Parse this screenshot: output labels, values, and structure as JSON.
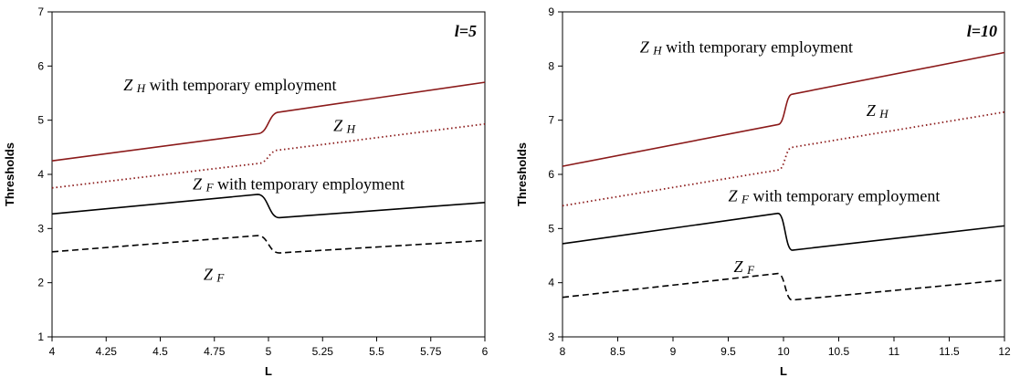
{
  "chart_data": [
    {
      "type": "line",
      "title": "l=5",
      "xlabel": "L",
      "ylabel": "Thresholds",
      "xlim": [
        4,
        6
      ],
      "ylim": [
        1,
        7
      ],
      "x_ticks": [
        "4",
        "4.25",
        "4.5",
        "4.75",
        "5",
        "5.25",
        "5.5",
        "5.75",
        "6"
      ],
      "y_ticks": [
        "1",
        "2",
        "3",
        "4",
        "5",
        "6",
        "7"
      ],
      "grid": false,
      "legend": "none",
      "jump_at": 5,
      "series": [
        {
          "name": "ZH with temporary employment",
          "style": "solid",
          "color": "#8b1a1a",
          "x": [
            4,
            4.95,
            5.05,
            6
          ],
          "y": [
            4.25,
            4.75,
            5.15,
            5.7
          ]
        },
        {
          "name": "ZH",
          "style": "dotted",
          "color": "#8b1a1a",
          "x": [
            4,
            4.95,
            5.05,
            6
          ],
          "y": [
            3.75,
            4.2,
            4.45,
            4.93
          ]
        },
        {
          "name": "ZF with temporary employment",
          "style": "solid",
          "color": "#000000",
          "x": [
            4,
            4.95,
            5.05,
            6
          ],
          "y": [
            3.27,
            3.63,
            3.2,
            3.48
          ]
        },
        {
          "name": "ZF",
          "style": "dashed",
          "color": "#000000",
          "x": [
            4,
            4.95,
            5.05,
            6
          ],
          "y": [
            2.57,
            2.87,
            2.55,
            2.78
          ]
        }
      ],
      "annotations": [
        {
          "sym": "Z",
          "sub": "H",
          "text": " with temporary employment",
          "x": 4.33,
          "y": 5.55
        },
        {
          "sym": "Z",
          "sub": "H",
          "text": "",
          "x": 5.3,
          "y": 4.8
        },
        {
          "sym": "Z",
          "sub": "F",
          "text": " with temporary employment",
          "x": 4.65,
          "y": 3.72
        },
        {
          "sym": "Z",
          "sub": "F",
          "text": "",
          "x": 4.7,
          "y": 2.05
        }
      ]
    },
    {
      "type": "line",
      "title": "l=10",
      "xlabel": "L",
      "ylabel": "Thresholds",
      "xlim": [
        8,
        12
      ],
      "ylim": [
        3,
        9
      ],
      "x_ticks": [
        "8",
        "8.5",
        "9",
        "9.5",
        "10",
        "10.5",
        "11",
        "11.5",
        "12"
      ],
      "y_ticks": [
        "3",
        "4",
        "5",
        "6",
        "7",
        "8",
        "9"
      ],
      "grid": false,
      "legend": "none",
      "jump_at": 10,
      "series": [
        {
          "name": "ZH with temporary employment",
          "style": "solid",
          "color": "#8b1a1a",
          "x": [
            8,
            9.95,
            10.08,
            12
          ],
          "y": [
            6.15,
            6.92,
            7.48,
            8.25
          ]
        },
        {
          "name": "ZH",
          "style": "dotted",
          "color": "#8b1a1a",
          "x": [
            8,
            9.95,
            10.08,
            12
          ],
          "y": [
            5.42,
            6.08,
            6.5,
            7.15
          ]
        },
        {
          "name": "ZF with temporary employment",
          "style": "solid",
          "color": "#000000",
          "x": [
            8,
            9.95,
            10.08,
            12
          ],
          "y": [
            4.72,
            5.28,
            4.6,
            5.05
          ]
        },
        {
          "name": "ZF",
          "style": "dashed",
          "color": "#000000",
          "x": [
            8,
            9.95,
            10.08,
            12
          ],
          "y": [
            3.73,
            4.17,
            3.68,
            4.05
          ]
        }
      ],
      "annotations": [
        {
          "sym": "Z",
          "sub": "H",
          "text": " with temporary employment",
          "x": 8.7,
          "y": 8.25
        },
        {
          "sym": "Z",
          "sub": "H",
          "text": "",
          "x": 10.75,
          "y": 7.08
        },
        {
          "sym": "Z",
          "sub": "F",
          "text": " with temporary employment",
          "x": 9.5,
          "y": 5.5
        },
        {
          "sym": "Z",
          "sub": "F",
          "text": "",
          "x": 9.55,
          "y": 4.2
        }
      ]
    }
  ]
}
